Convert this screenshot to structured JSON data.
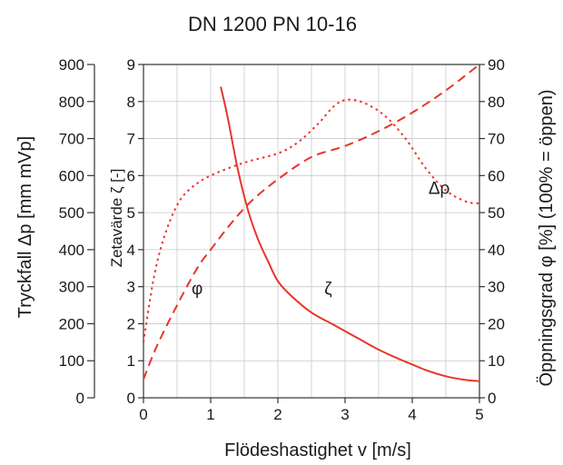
{
  "chart_data": {
    "type": "line",
    "title": "DN 1200 PN 10-16",
    "xlabel": "Flödeshastighet v [m/s]",
    "xlim": [
      0,
      5
    ],
    "x_ticks": [
      "0",
      "1",
      "2",
      "3",
      "4",
      "5"
    ],
    "grid": true,
    "axes": {
      "pressure": {
        "label": "Tryckfall Δp [mm mVp]",
        "lim": [
          0,
          900
        ],
        "ticks": [
          "0",
          "100",
          "200",
          "300",
          "400",
          "500",
          "600",
          "700",
          "800",
          "900"
        ]
      },
      "zeta": {
        "label": "Zetavärde ζ [-]",
        "lim": [
          0,
          9
        ],
        "ticks": [
          "0",
          "1",
          "2",
          "3",
          "4",
          "5",
          "6",
          "7",
          "8",
          "9"
        ]
      },
      "opening": {
        "label": "Öppningsgrad φ [%] (100% = öppen)",
        "lim": [
          0,
          90
        ],
        "ticks": [
          "0",
          "10",
          "20",
          "30",
          "40",
          "50",
          "60",
          "70",
          "80",
          "90"
        ]
      }
    },
    "series": [
      {
        "name": "ζ",
        "axis": "zeta",
        "style": "solid",
        "color": "#e8352b",
        "x": [
          1.15,
          1.25,
          1.4,
          1.55,
          1.7,
          1.85,
          2.0,
          2.2,
          2.5,
          2.8,
          3.0,
          3.2,
          3.5,
          3.8,
          4.0,
          4.2,
          4.5,
          4.8,
          5.0
        ],
        "y": [
          8.4,
          7.6,
          6.2,
          5.1,
          4.3,
          3.7,
          3.15,
          2.75,
          2.3,
          2.0,
          1.8,
          1.6,
          1.3,
          1.05,
          0.9,
          0.75,
          0.58,
          0.48,
          0.45
        ]
      },
      {
        "name": "φ",
        "axis": "opening",
        "style": "dashed",
        "color": "#e8352b",
        "x": [
          0.0,
          0.2,
          0.5,
          0.8,
          1.0,
          1.3,
          1.6,
          2.0,
          2.5,
          3.0,
          3.5,
          4.0,
          4.5,
          5.0
        ],
        "y": [
          5,
          14,
          25,
          35,
          40,
          47,
          53,
          59,
          65,
          68,
          72,
          77,
          83,
          90
        ]
      },
      {
        "name": "Δρ",
        "axis": "pressure",
        "style": "dotted",
        "color": "#e8352b",
        "x": [
          0.0,
          0.15,
          0.3,
          0.5,
          0.7,
          1.0,
          1.5,
          2.0,
          2.3,
          2.6,
          2.85,
          3.05,
          3.3,
          3.6,
          3.9,
          4.2,
          4.5,
          4.8,
          5.0
        ],
        "y": [
          150,
          320,
          430,
          520,
          565,
          600,
          635,
          660,
          690,
          740,
          790,
          805,
          795,
          760,
          700,
          620,
          560,
          530,
          525
        ]
      }
    ],
    "annotations": [
      {
        "text": "φ",
        "x": 0.8,
        "y_opening": 28
      },
      {
        "text": "ζ",
        "x": 2.75,
        "y_opening": 28
      },
      {
        "text": "Δρ",
        "x": 4.4,
        "y_opening": 55
      }
    ]
  }
}
